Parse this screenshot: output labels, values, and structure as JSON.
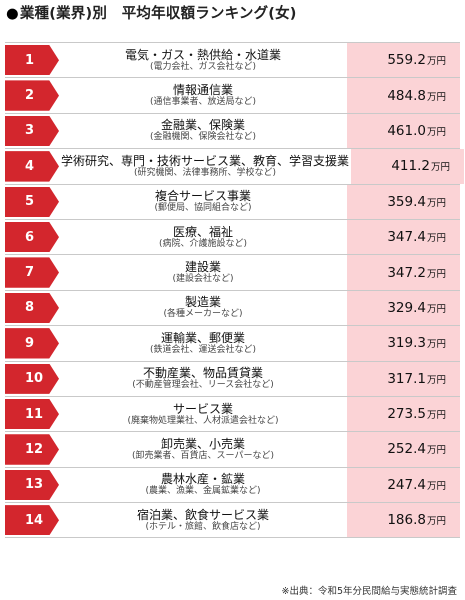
{
  "title": "業種(業界)別　平均年収額ランキング(女)",
  "unit": "万円",
  "rows": [
    {
      "rank": "1",
      "name": "電気・ガス・熱供給・水道業",
      "sub": "(電力会社、ガス会社など)",
      "value": "559.2"
    },
    {
      "rank": "2",
      "name": "情報通信業",
      "sub": "(通信事業者、放送局など)",
      "value": "484.8"
    },
    {
      "rank": "3",
      "name": "金融業、保険業",
      "sub": "(金融機関、保険会社など)",
      "value": "461.0"
    },
    {
      "rank": "4",
      "name": "学術研究、専門・技術サービス業、教育、学習支援業",
      "sub": "(研究機関、法律事務所、学校など)",
      "value": "411.2"
    },
    {
      "rank": "5",
      "name": "複合サービス事業",
      "sub": "(郵便局、協同組合など)",
      "value": "359.4"
    },
    {
      "rank": "6",
      "name": "医療、福祉",
      "sub": "(病院、介護施設など)",
      "value": "347.4"
    },
    {
      "rank": "7",
      "name": "建設業",
      "sub": "(建設会社など)",
      "value": "347.2"
    },
    {
      "rank": "8",
      "name": "製造業",
      "sub": "(各種メーカーなど)",
      "value": "329.4"
    },
    {
      "rank": "9",
      "name": "運輸業、郵便業",
      "sub": "(鉄道会社、運送会社など)",
      "value": "319.3"
    },
    {
      "rank": "10",
      "name": "不動産業、物品賃貸業",
      "sub": "(不動産管理会社、リース会社など)",
      "value": "317.1"
    },
    {
      "rank": "11",
      "name": "サービス業",
      "sub": "(廃棄物処理業社、人材派遣会社など)",
      "value": "273.5"
    },
    {
      "rank": "12",
      "name": "卸売業、小売業",
      "sub": "(卸売業者、百貨店、スーパーなど)",
      "value": "252.4"
    },
    {
      "rank": "13",
      "name": "農林水産・鉱業",
      "sub": "(農業、漁業、金属鉱業など)",
      "value": "247.4"
    },
    {
      "rank": "14",
      "name": "宿泊業、飲食サービス業",
      "sub": "(ホテル・旅館、飲食店など)",
      "value": "186.8"
    }
  ],
  "source": "※出典：令和5年分民間給与実態統計調査",
  "colors": {
    "rank_bg": "#d3262d",
    "value_bg": "#fbd3d6"
  }
}
